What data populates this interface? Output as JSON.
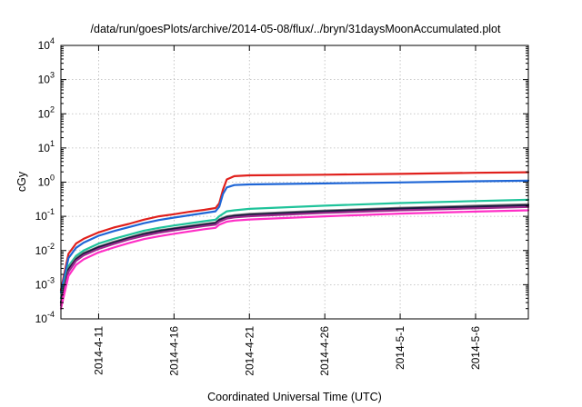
{
  "chart_data": {
    "type": "line",
    "title": "/data/run/goesPlots/archive/2014-05-08/flux/../bryn/31daysMoonAccumulated.plot",
    "xlabel": "Coordinated Universal Time (UTC)",
    "ylabel": "cGy",
    "yscale": "log",
    "ylim": [
      0.0001,
      10000
    ],
    "xlim": [
      "2014-04-08T12:00",
      "2014-05-09T12:00"
    ],
    "x_ticks": [
      {
        "date": "2014-04-11",
        "label": "2014-4-11"
      },
      {
        "date": "2014-04-16",
        "label": "2014-4-16"
      },
      {
        "date": "2014-04-21",
        "label": "2014-4-21"
      },
      {
        "date": "2014-04-26",
        "label": "2014-4-26"
      },
      {
        "date": "2014-05-01",
        "label": "2014-5-1"
      },
      {
        "date": "2014-05-06",
        "label": "2014-5-6"
      }
    ],
    "y_ticks": [
      {
        "value": 0.0001,
        "base": "10",
        "exp": "-4"
      },
      {
        "value": 0.001,
        "base": "10",
        "exp": "-3"
      },
      {
        "value": 0.01,
        "base": "10",
        "exp": "-2"
      },
      {
        "value": 0.1,
        "base": "10",
        "exp": "-1"
      },
      {
        "value": 1,
        "base": "10",
        "exp": "0"
      },
      {
        "value": 10,
        "base": "10",
        "exp": "1"
      },
      {
        "value": 100,
        "base": "10",
        "exp": "2"
      },
      {
        "value": 1000,
        "base": "10",
        "exp": "3"
      },
      {
        "value": 10000,
        "base": "10",
        "exp": "4"
      }
    ],
    "grid": true,
    "legend": false,
    "series": [
      {
        "color": "#e0201c",
        "points": [
          [
            "2014-04-08T12:00",
            0.0007
          ],
          [
            "2014-04-09T00:00",
            0.008
          ],
          [
            "2014-04-09T12:00",
            0.016
          ],
          [
            "2014-04-10T00:00",
            0.022
          ],
          [
            "2014-04-11T00:00",
            0.034
          ],
          [
            "2014-04-12T00:00",
            0.047
          ],
          [
            "2014-04-13T00:00",
            0.06
          ],
          [
            "2014-04-14T00:00",
            0.08
          ],
          [
            "2014-04-15T00:00",
            0.1
          ],
          [
            "2014-04-16T00:00",
            0.115
          ],
          [
            "2014-04-17T00:00",
            0.135
          ],
          [
            "2014-04-18T00:00",
            0.155
          ],
          [
            "2014-04-18T18:00",
            0.175
          ],
          [
            "2014-04-19T00:00",
            0.24
          ],
          [
            "2014-04-19T06:00",
            0.6
          ],
          [
            "2014-04-19T12:00",
            1.2
          ],
          [
            "2014-04-20T00:00",
            1.5
          ],
          [
            "2014-04-21T00:00",
            1.58
          ],
          [
            "2014-04-26T00:00",
            1.65
          ],
          [
            "2014-05-01T00:00",
            1.75
          ],
          [
            "2014-05-06T00:00",
            1.88
          ],
          [
            "2014-05-09T12:00",
            1.95
          ]
        ]
      },
      {
        "color": "#1f66d6",
        "points": [
          [
            "2014-04-08T12:00",
            0.0006
          ],
          [
            "2014-04-09T00:00",
            0.006
          ],
          [
            "2014-04-09T12:00",
            0.012
          ],
          [
            "2014-04-10T00:00",
            0.017
          ],
          [
            "2014-04-11T00:00",
            0.027
          ],
          [
            "2014-04-12T00:00",
            0.037
          ],
          [
            "2014-04-13T00:00",
            0.048
          ],
          [
            "2014-04-14T00:00",
            0.063
          ],
          [
            "2014-04-15T00:00",
            0.078
          ],
          [
            "2014-04-16T00:00",
            0.092
          ],
          [
            "2014-04-17T00:00",
            0.107
          ],
          [
            "2014-04-18T00:00",
            0.125
          ],
          [
            "2014-04-18T18:00",
            0.14
          ],
          [
            "2014-04-19T00:00",
            0.19
          ],
          [
            "2014-04-19T06:00",
            0.45
          ],
          [
            "2014-04-19T12:00",
            0.7
          ],
          [
            "2014-04-20T00:00",
            0.82
          ],
          [
            "2014-04-21T00:00",
            0.86
          ],
          [
            "2014-04-26T00:00",
            0.92
          ],
          [
            "2014-05-01T00:00",
            0.98
          ],
          [
            "2014-05-06T00:00",
            1.06
          ],
          [
            "2014-05-09T12:00",
            1.1
          ]
        ]
      },
      {
        "color": "#1fc39a",
        "points": [
          [
            "2014-04-08T12:00",
            0.0004
          ],
          [
            "2014-04-09T00:00",
            0.0035
          ],
          [
            "2014-04-09T12:00",
            0.007
          ],
          [
            "2014-04-10T00:00",
            0.01
          ],
          [
            "2014-04-11T00:00",
            0.016
          ],
          [
            "2014-04-12T00:00",
            0.022
          ],
          [
            "2014-04-13T00:00",
            0.029
          ],
          [
            "2014-04-14T00:00",
            0.038
          ],
          [
            "2014-04-15T00:00",
            0.046
          ],
          [
            "2014-04-16T00:00",
            0.054
          ],
          [
            "2014-04-17T00:00",
            0.062
          ],
          [
            "2014-04-18T00:00",
            0.072
          ],
          [
            "2014-04-18T18:00",
            0.08
          ],
          [
            "2014-04-19T00:00",
            0.1
          ],
          [
            "2014-04-19T12:00",
            0.14
          ],
          [
            "2014-04-20T00:00",
            0.15
          ],
          [
            "2014-04-21T00:00",
            0.165
          ],
          [
            "2014-04-26T00:00",
            0.205
          ],
          [
            "2014-05-01T00:00",
            0.245
          ],
          [
            "2014-05-06T00:00",
            0.28
          ],
          [
            "2014-05-09T12:00",
            0.305
          ]
        ]
      },
      {
        "color": "#7a7a7a",
        "points": [
          [
            "2014-04-08T12:00",
            0.0003
          ],
          [
            "2014-04-09T00:00",
            0.003
          ],
          [
            "2014-04-09T12:00",
            0.006
          ],
          [
            "2014-04-10T00:00",
            0.0085
          ],
          [
            "2014-04-11T00:00",
            0.013
          ],
          [
            "2014-04-12T00:00",
            0.018
          ],
          [
            "2014-04-13T00:00",
            0.024
          ],
          [
            "2014-04-14T00:00",
            0.032
          ],
          [
            "2014-04-15T00:00",
            0.039
          ],
          [
            "2014-04-16T00:00",
            0.045
          ],
          [
            "2014-04-17T00:00",
            0.052
          ],
          [
            "2014-04-18T00:00",
            0.06
          ],
          [
            "2014-04-18T18:00",
            0.066
          ],
          [
            "2014-04-19T00:00",
            0.082
          ],
          [
            "2014-04-19T12:00",
            0.1
          ],
          [
            "2014-04-20T00:00",
            0.108
          ],
          [
            "2014-04-21T00:00",
            0.118
          ],
          [
            "2014-04-26T00:00",
            0.148
          ],
          [
            "2014-05-01T00:00",
            0.178
          ],
          [
            "2014-05-06T00:00",
            0.205
          ],
          [
            "2014-05-09T12:00",
            0.225
          ]
        ]
      },
      {
        "color": "#1a1a40",
        "points": [
          [
            "2014-04-08T12:00",
            0.0003
          ],
          [
            "2014-04-09T00:00",
            0.0028
          ],
          [
            "2014-04-09T12:00",
            0.0055
          ],
          [
            "2014-04-10T00:00",
            0.008
          ],
          [
            "2014-04-11T00:00",
            0.0125
          ],
          [
            "2014-04-12T00:00",
            0.017
          ],
          [
            "2014-04-13T00:00",
            0.023
          ],
          [
            "2014-04-14T00:00",
            0.03
          ],
          [
            "2014-04-15T00:00",
            0.037
          ],
          [
            "2014-04-16T00:00",
            0.043
          ],
          [
            "2014-04-17T00:00",
            0.05
          ],
          [
            "2014-04-18T00:00",
            0.057
          ],
          [
            "2014-04-18T18:00",
            0.063
          ],
          [
            "2014-04-19T00:00",
            0.078
          ],
          [
            "2014-04-19T12:00",
            0.095
          ],
          [
            "2014-04-20T00:00",
            0.103
          ],
          [
            "2014-04-21T00:00",
            0.112
          ],
          [
            "2014-04-26T00:00",
            0.14
          ],
          [
            "2014-05-01T00:00",
            0.168
          ],
          [
            "2014-05-06T00:00",
            0.192
          ],
          [
            "2014-05-09T12:00",
            0.21
          ]
        ]
      },
      {
        "color": "#9b2a8c",
        "points": [
          [
            "2014-04-08T12:00",
            0.00025
          ],
          [
            "2014-04-09T00:00",
            0.0024
          ],
          [
            "2014-04-09T12:00",
            0.005
          ],
          [
            "2014-04-10T00:00",
            0.0072
          ],
          [
            "2014-04-11T00:00",
            0.0112
          ],
          [
            "2014-04-12T00:00",
            0.0155
          ],
          [
            "2014-04-13T00:00",
            0.021
          ],
          [
            "2014-04-14T00:00",
            0.027
          ],
          [
            "2014-04-15T00:00",
            0.033
          ],
          [
            "2014-04-16T00:00",
            0.039
          ],
          [
            "2014-04-17T00:00",
            0.045
          ],
          [
            "2014-04-18T00:00",
            0.052
          ],
          [
            "2014-04-18T18:00",
            0.057
          ],
          [
            "2014-04-19T00:00",
            0.07
          ],
          [
            "2014-04-19T12:00",
            0.086
          ],
          [
            "2014-04-20T00:00",
            0.093
          ],
          [
            "2014-04-21T00:00",
            0.101
          ],
          [
            "2014-04-26T00:00",
            0.126
          ],
          [
            "2014-05-01T00:00",
            0.15
          ],
          [
            "2014-05-06T00:00",
            0.172
          ],
          [
            "2014-05-09T12:00",
            0.188
          ]
        ]
      },
      {
        "color": "#ff2fc6",
        "points": [
          [
            "2014-04-08T12:00",
            0.0002
          ],
          [
            "2014-04-09T00:00",
            0.0018
          ],
          [
            "2014-04-09T12:00",
            0.0038
          ],
          [
            "2014-04-10T00:00",
            0.0055
          ],
          [
            "2014-04-11T00:00",
            0.0088
          ],
          [
            "2014-04-12T00:00",
            0.0122
          ],
          [
            "2014-04-13T00:00",
            0.0165
          ],
          [
            "2014-04-14T00:00",
            0.0215
          ],
          [
            "2014-04-15T00:00",
            0.026
          ],
          [
            "2014-04-16T00:00",
            0.031
          ],
          [
            "2014-04-17T00:00",
            0.036
          ],
          [
            "2014-04-18T00:00",
            0.042
          ],
          [
            "2014-04-18T18:00",
            0.046
          ],
          [
            "2014-04-19T00:00",
            0.057
          ],
          [
            "2014-04-19T12:00",
            0.07
          ],
          [
            "2014-04-20T00:00",
            0.075
          ],
          [
            "2014-04-21T00:00",
            0.081
          ],
          [
            "2014-04-26T00:00",
            0.1
          ],
          [
            "2014-05-01T00:00",
            0.12
          ],
          [
            "2014-05-06T00:00",
            0.138
          ],
          [
            "2014-05-09T12:00",
            0.15
          ]
        ]
      }
    ]
  }
}
